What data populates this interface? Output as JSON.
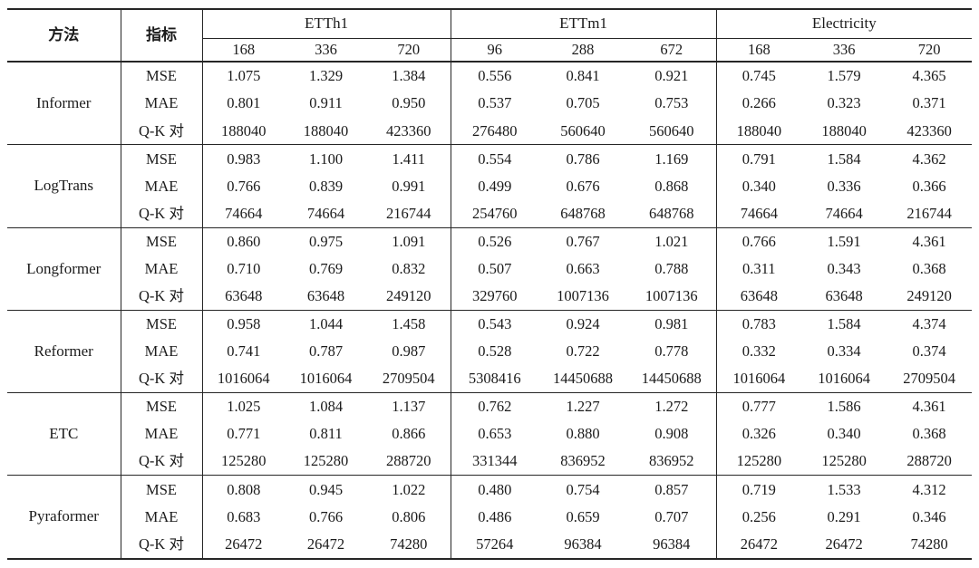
{
  "colors": {
    "background": "#ffffff",
    "rule": "#262626",
    "text": "#1b1b1b"
  },
  "table": {
    "header": {
      "method_label": "方法",
      "metric_label": "指标",
      "groups": [
        {
          "label": "ETTh1",
          "cols": [
            "168",
            "336",
            "720"
          ]
        },
        {
          "label": "ETTm1",
          "cols": [
            "96",
            "288",
            "672"
          ]
        },
        {
          "label": "Electricity",
          "cols": [
            "168",
            "336",
            "720"
          ]
        }
      ]
    },
    "metric_names": [
      "MSE",
      "MAE",
      "Q-K 对"
    ],
    "methods": [
      {
        "name": "Informer",
        "rows": [
          [
            "1.075",
            "1.329",
            "1.384",
            "0.556",
            "0.841",
            "0.921",
            "0.745",
            "1.579",
            "4.365"
          ],
          [
            "0.801",
            "0.911",
            "0.950",
            "0.537",
            "0.705",
            "0.753",
            "0.266",
            "0.323",
            "0.371"
          ],
          [
            "188040",
            "188040",
            "423360",
            "276480",
            "560640",
            "560640",
            "188040",
            "188040",
            "423360"
          ]
        ]
      },
      {
        "name": "LogTrans",
        "rows": [
          [
            "0.983",
            "1.100",
            "1.411",
            "0.554",
            "0.786",
            "1.169",
            "0.791",
            "1.584",
            "4.362"
          ],
          [
            "0.766",
            "0.839",
            "0.991",
            "0.499",
            "0.676",
            "0.868",
            "0.340",
            "0.336",
            "0.366"
          ],
          [
            "74664",
            "74664",
            "216744",
            "254760",
            "648768",
            "648768",
            "74664",
            "74664",
            "216744"
          ]
        ]
      },
      {
        "name": "Longformer",
        "rows": [
          [
            "0.860",
            "0.975",
            "1.091",
            "0.526",
            "0.767",
            "1.021",
            "0.766",
            "1.591",
            "4.361"
          ],
          [
            "0.710",
            "0.769",
            "0.832",
            "0.507",
            "0.663",
            "0.788",
            "0.311",
            "0.343",
            "0.368"
          ],
          [
            "63648",
            "63648",
            "249120",
            "329760",
            "1007136",
            "1007136",
            "63648",
            "63648",
            "249120"
          ]
        ]
      },
      {
        "name": "Reformer",
        "rows": [
          [
            "0.958",
            "1.044",
            "1.458",
            "0.543",
            "0.924",
            "0.981",
            "0.783",
            "1.584",
            "4.374"
          ],
          [
            "0.741",
            "0.787",
            "0.987",
            "0.528",
            "0.722",
            "0.778",
            "0.332",
            "0.334",
            "0.374"
          ],
          [
            "1016064",
            "1016064",
            "2709504",
            "5308416",
            "14450688",
            "14450688",
            "1016064",
            "1016064",
            "2709504"
          ]
        ]
      },
      {
        "name": "ETC",
        "rows": [
          [
            "1.025",
            "1.084",
            "1.137",
            "0.762",
            "1.227",
            "1.272",
            "0.777",
            "1.586",
            "4.361"
          ],
          [
            "0.771",
            "0.811",
            "0.866",
            "0.653",
            "0.880",
            "0.908",
            "0.326",
            "0.340",
            "0.368"
          ],
          [
            "125280",
            "125280",
            "288720",
            "331344",
            "836952",
            "836952",
            "125280",
            "125280",
            "288720"
          ]
        ]
      },
      {
        "name": "Pyraformer",
        "rows": [
          [
            "0.808",
            "0.945",
            "1.022",
            "0.480",
            "0.754",
            "0.857",
            "0.719",
            "1.533",
            "4.312"
          ],
          [
            "0.683",
            "0.766",
            "0.806",
            "0.486",
            "0.659",
            "0.707",
            "0.256",
            "0.291",
            "0.346"
          ],
          [
            "26472",
            "26472",
            "74280",
            "57264",
            "96384",
            "96384",
            "26472",
            "26472",
            "74280"
          ]
        ]
      }
    ]
  }
}
